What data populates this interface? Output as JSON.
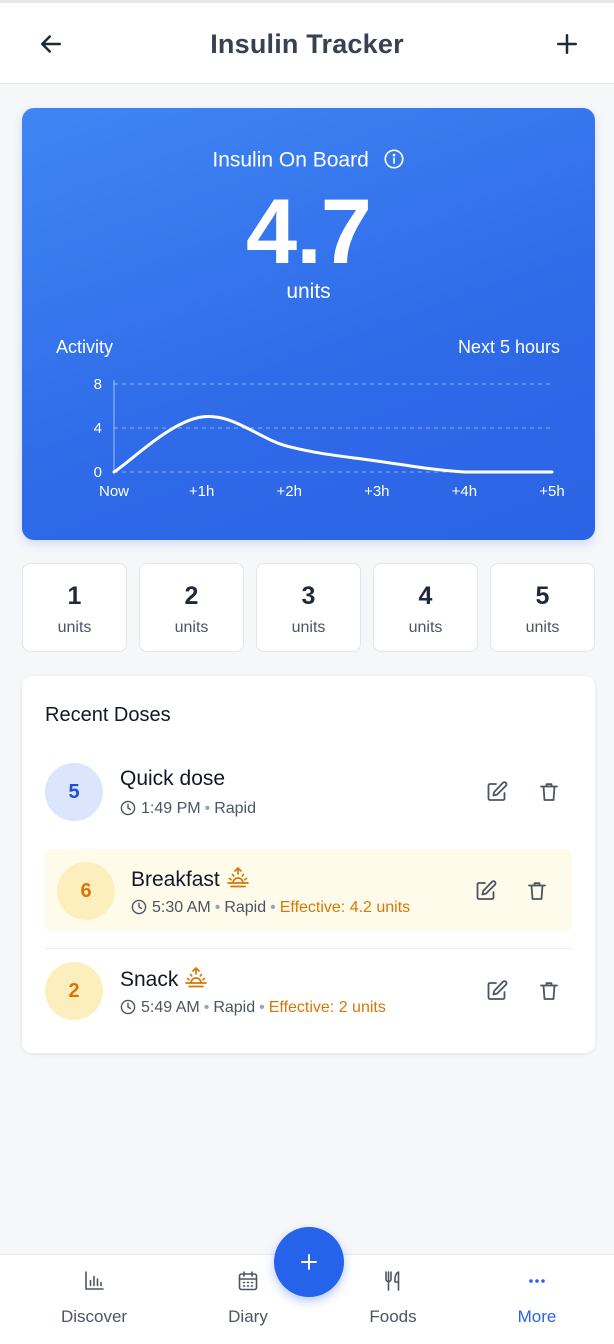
{
  "header": {
    "title": "Insulin Tracker",
    "back_icon": "arrow-left-icon",
    "add_icon": "plus-icon"
  },
  "iob": {
    "label": "Insulin On Board",
    "value": "4.7",
    "unit": "units",
    "activity_label": "Activity",
    "range_label": "Next 5 hours"
  },
  "chart_data": {
    "type": "line",
    "x": [
      "Now",
      "+1h",
      "+2h",
      "+3h",
      "+4h",
      "+5h"
    ],
    "series": [
      {
        "values": [
          0,
          5,
          2.3,
          1.0,
          0,
          0
        ]
      }
    ],
    "ylim": [
      0,
      8
    ],
    "yticks": [
      "0",
      "4",
      "8"
    ],
    "grid": true,
    "colors": {
      "line": "#ffffff",
      "grid": "rgba(255,255,255,0.45)"
    }
  },
  "quick_doses": [
    {
      "value": "1",
      "unit": "units"
    },
    {
      "value": "2",
      "unit": "units"
    },
    {
      "value": "3",
      "unit": "units"
    },
    {
      "value": "4",
      "unit": "units"
    },
    {
      "value": "5",
      "unit": "units"
    }
  ],
  "recent": {
    "title": "Recent Doses",
    "items": [
      {
        "amount": "5",
        "name": "Quick dose",
        "time": "1:49 PM",
        "type": "Rapid",
        "effective": ""
      },
      {
        "amount": "6",
        "name": "Breakfast",
        "time": "5:30 AM",
        "type": "Rapid",
        "effective": "Effective: 4.2 units"
      },
      {
        "amount": "2",
        "name": "Snack",
        "time": "5:49 AM",
        "type": "Rapid",
        "effective": "Effective: 2 units"
      }
    ]
  },
  "nav": {
    "items": [
      {
        "label": "Discover",
        "icon": "bar-chart-icon"
      },
      {
        "label": "Diary",
        "icon": "calendar-icon"
      },
      {
        "label": "Foods",
        "icon": "utensils-icon"
      },
      {
        "label": "More",
        "icon": "more-dots-icon"
      }
    ],
    "active": "More"
  },
  "colors": {
    "primary": "#2563eb",
    "warning": "#d97706",
    "highlight_bg": "#fefbea"
  }
}
